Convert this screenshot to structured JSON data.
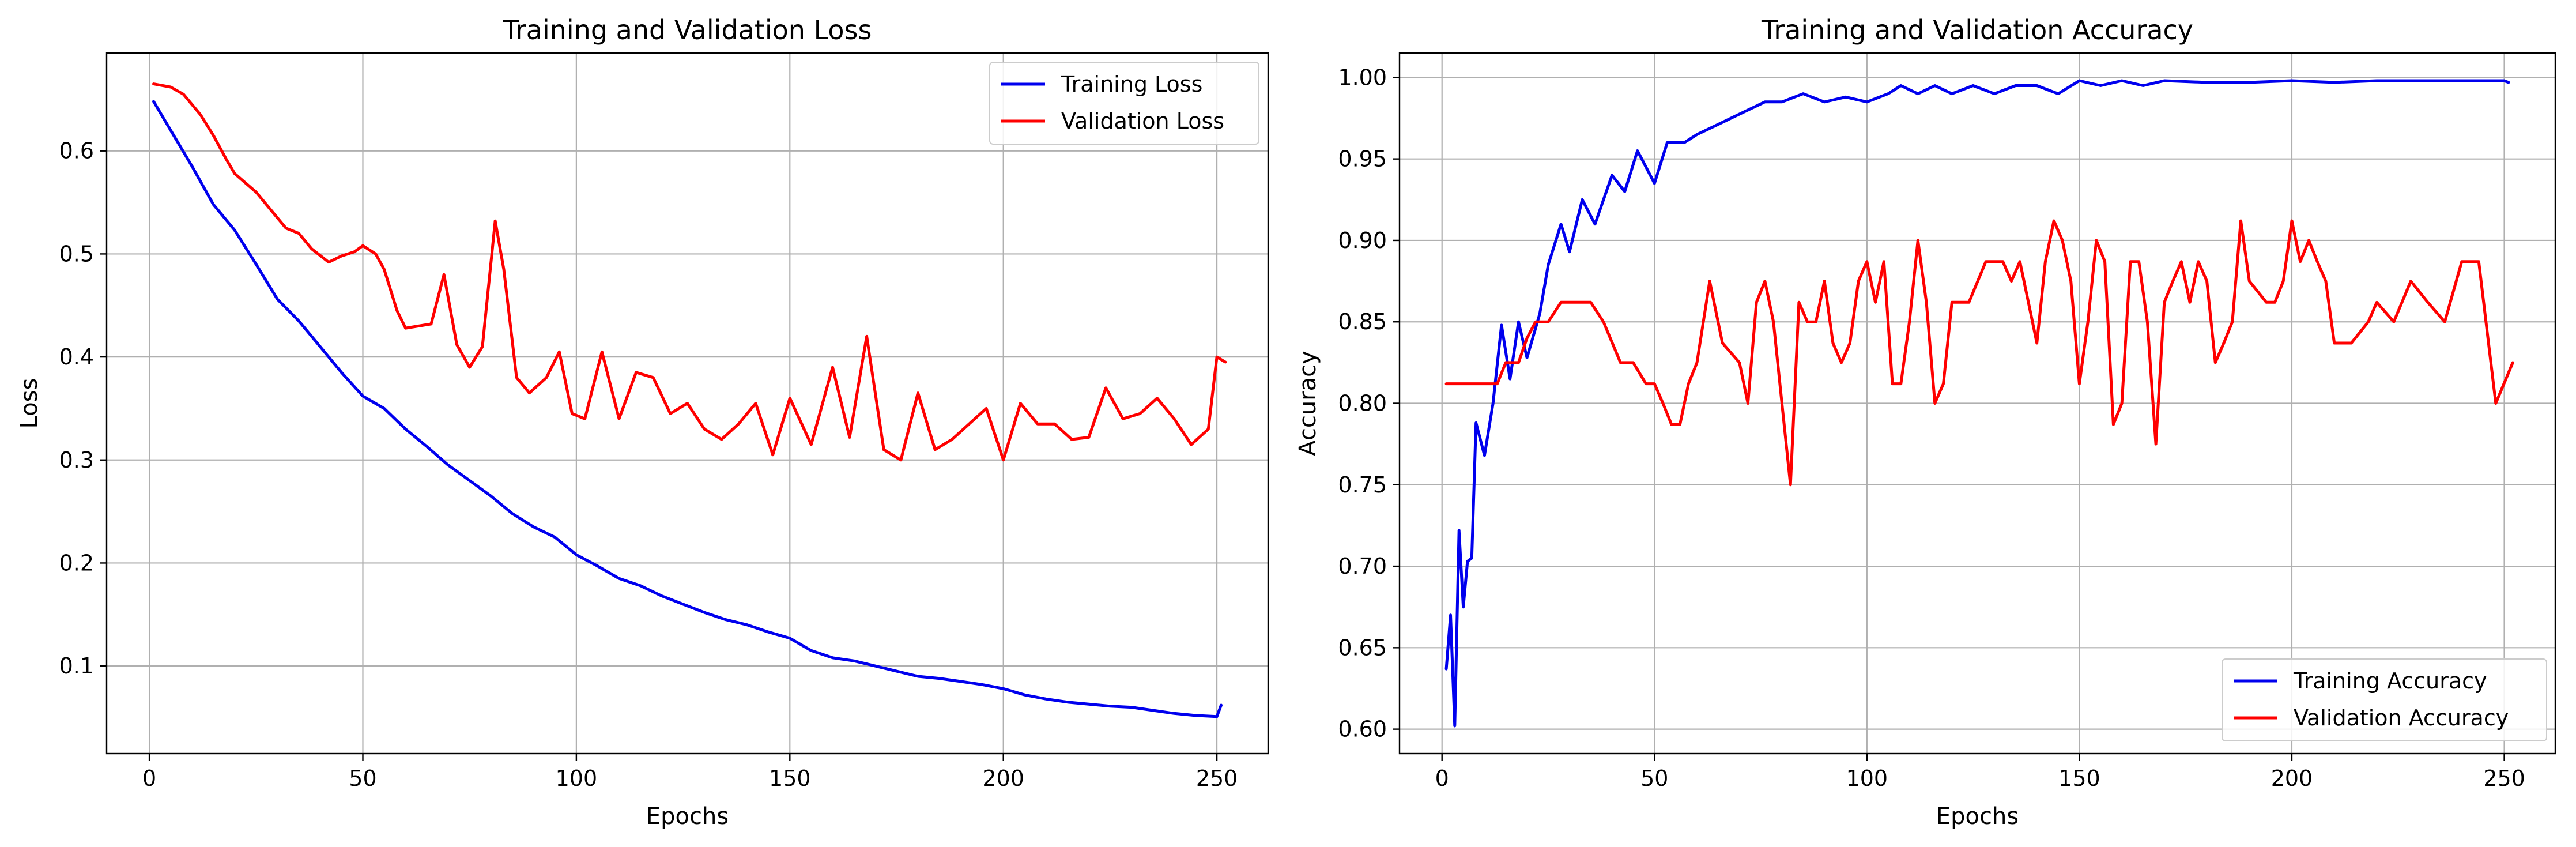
{
  "colors": {
    "train": "#0000ee",
    "val": "#ff0000",
    "grid": "#b0b0b0",
    "axes": "#000000"
  },
  "chart_data": [
    {
      "type": "line",
      "title": "Training and Validation Loss",
      "xlabel": "Epochs",
      "ylabel": "Loss",
      "xlim": [
        -10,
        262
      ],
      "ylim": [
        0.015,
        0.695
      ],
      "xticks": [
        0,
        50,
        100,
        150,
        200,
        250
      ],
      "xtick_labels": [
        "0",
        "50",
        "100",
        "150",
        "200",
        "250"
      ],
      "yticks": [
        0.1,
        0.2,
        0.3,
        0.4,
        0.5,
        0.6
      ],
      "ytick_labels": [
        "0.1",
        "0.2",
        "0.3",
        "0.4",
        "0.5",
        "0.6"
      ],
      "grid": true,
      "legend_position": "upper right",
      "series": [
        {
          "name": "Training Loss",
          "color_key": "train",
          "x": [
            1,
            5,
            10,
            15,
            20,
            25,
            30,
            35,
            40,
            45,
            50,
            55,
            60,
            65,
            70,
            75,
            80,
            85,
            90,
            95,
            100,
            105,
            110,
            115,
            120,
            125,
            130,
            135,
            140,
            145,
            150,
            155,
            160,
            165,
            170,
            175,
            180,
            185,
            190,
            195,
            200,
            205,
            210,
            215,
            220,
            225,
            230,
            235,
            240,
            245,
            250,
            251
          ],
          "y": [
            0.648,
            0.62,
            0.585,
            0.548,
            0.523,
            0.49,
            0.456,
            0.435,
            0.41,
            0.385,
            0.362,
            0.35,
            0.33,
            0.313,
            0.295,
            0.28,
            0.265,
            0.248,
            0.235,
            0.225,
            0.208,
            0.197,
            0.185,
            0.178,
            0.168,
            0.16,
            0.152,
            0.145,
            0.14,
            0.133,
            0.127,
            0.115,
            0.108,
            0.105,
            0.1,
            0.095,
            0.09,
            0.088,
            0.085,
            0.082,
            0.078,
            0.072,
            0.068,
            0.065,
            0.063,
            0.061,
            0.06,
            0.057,
            0.054,
            0.052,
            0.051,
            0.062
          ]
        },
        {
          "name": "Validation Loss",
          "color_key": "val",
          "x": [
            1,
            5,
            8,
            12,
            15,
            18,
            20,
            25,
            28,
            32,
            35,
            38,
            42,
            45,
            48,
            50,
            53,
            55,
            58,
            60,
            63,
            66,
            69,
            72,
            75,
            78,
            81,
            83,
            86,
            89,
            93,
            96,
            99,
            102,
            106,
            110,
            114,
            118,
            122,
            126,
            130,
            134,
            138,
            142,
            146,
            150,
            155,
            160,
            164,
            168,
            172,
            176,
            180,
            184,
            188,
            192,
            196,
            200,
            204,
            208,
            212,
            216,
            220,
            224,
            228,
            232,
            236,
            240,
            244,
            248,
            250,
            252
          ],
          "y": [
            0.665,
            0.662,
            0.655,
            0.635,
            0.615,
            0.592,
            0.578,
            0.56,
            0.545,
            0.525,
            0.52,
            0.505,
            0.492,
            0.498,
            0.502,
            0.508,
            0.5,
            0.485,
            0.445,
            0.428,
            0.43,
            0.432,
            0.48,
            0.412,
            0.39,
            0.41,
            0.532,
            0.485,
            0.38,
            0.365,
            0.38,
            0.405,
            0.345,
            0.34,
            0.405,
            0.34,
            0.385,
            0.38,
            0.345,
            0.355,
            0.33,
            0.32,
            0.335,
            0.355,
            0.305,
            0.36,
            0.315,
            0.39,
            0.322,
            0.42,
            0.31,
            0.3,
            0.365,
            0.31,
            0.32,
            0.335,
            0.35,
            0.3,
            0.355,
            0.335,
            0.335,
            0.32,
            0.322,
            0.37,
            0.34,
            0.345,
            0.36,
            0.34,
            0.315,
            0.33,
            0.4,
            0.395
          ]
        }
      ]
    },
    {
      "type": "line",
      "title": "Training and Validation Accuracy",
      "xlabel": "Epochs",
      "ylabel": "Accuracy",
      "xlim": [
        -10,
        262
      ],
      "ylim": [
        0.585,
        1.015
      ],
      "xticks": [
        0,
        50,
        100,
        150,
        200,
        250
      ],
      "xtick_labels": [
        "0",
        "50",
        "100",
        "150",
        "200",
        "250"
      ],
      "yticks": [
        0.6,
        0.65,
        0.7,
        0.75,
        0.8,
        0.85,
        0.9,
        0.95,
        1.0
      ],
      "ytick_labels": [
        "0.60",
        "0.65",
        "0.70",
        "0.75",
        "0.80",
        "0.85",
        "0.90",
        "0.95",
        "1.00"
      ],
      "grid": true,
      "legend_position": "lower right",
      "series": [
        {
          "name": "Training Accuracy",
          "color_key": "train",
          "x": [
            1,
            2,
            3,
            4,
            5,
            6,
            7,
            8,
            10,
            12,
            14,
            16,
            18,
            20,
            23,
            25,
            28,
            30,
            33,
            36,
            40,
            43,
            46,
            50,
            53,
            57,
            60,
            64,
            68,
            72,
            76,
            80,
            85,
            90,
            95,
            100,
            105,
            108,
            112,
            116,
            120,
            125,
            130,
            135,
            140,
            145,
            150,
            155,
            160,
            165,
            170,
            180,
            190,
            200,
            210,
            220,
            230,
            240,
            250,
            251
          ],
          "y": [
            0.637,
            0.67,
            0.602,
            0.722,
            0.675,
            0.703,
            0.705,
            0.788,
            0.768,
            0.8,
            0.848,
            0.815,
            0.85,
            0.828,
            0.855,
            0.885,
            0.91,
            0.893,
            0.925,
            0.91,
            0.94,
            0.93,
            0.955,
            0.935,
            0.96,
            0.96,
            0.965,
            0.97,
            0.975,
            0.98,
            0.985,
            0.985,
            0.99,
            0.985,
            0.988,
            0.985,
            0.99,
            0.995,
            0.99,
            0.995,
            0.99,
            0.995,
            0.99,
            0.995,
            0.995,
            0.99,
            0.998,
            0.995,
            0.998,
            0.995,
            0.998,
            0.997,
            0.997,
            0.998,
            0.997,
            0.998,
            0.998,
            0.998,
            0.998,
            0.997
          ]
        },
        {
          "name": "Validation Accuracy",
          "color_key": "val",
          "x": [
            1,
            5,
            10,
            13,
            15,
            18,
            20,
            22,
            25,
            28,
            30,
            35,
            38,
            42,
            45,
            48,
            50,
            52,
            54,
            56,
            58,
            60,
            63,
            66,
            70,
            72,
            74,
            76,
            78,
            80,
            82,
            84,
            86,
            88,
            90,
            92,
            94,
            96,
            98,
            100,
            102,
            104,
            106,
            108,
            110,
            112,
            114,
            116,
            118,
            120,
            124,
            128,
            130,
            132,
            134,
            136,
            138,
            140,
            142,
            144,
            146,
            148,
            150,
            152,
            154,
            156,
            158,
            160,
            162,
            164,
            166,
            168,
            170,
            172,
            174,
            176,
            178,
            180,
            182,
            184,
            186,
            188,
            190,
            194,
            196,
            198,
            200,
            202,
            204,
            206,
            208,
            210,
            214,
            218,
            220,
            224,
            228,
            232,
            236,
            240,
            244,
            248,
            252
          ],
          "y": [
            0.812,
            0.812,
            0.812,
            0.812,
            0.825,
            0.825,
            0.84,
            0.85,
            0.85,
            0.862,
            0.862,
            0.862,
            0.85,
            0.825,
            0.825,
            0.812,
            0.812,
            0.8,
            0.787,
            0.787,
            0.812,
            0.825,
            0.875,
            0.837,
            0.825,
            0.8,
            0.862,
            0.875,
            0.85,
            0.8,
            0.75,
            0.862,
            0.85,
            0.85,
            0.875,
            0.837,
            0.825,
            0.837,
            0.875,
            0.887,
            0.862,
            0.887,
            0.812,
            0.812,
            0.85,
            0.9,
            0.862,
            0.8,
            0.812,
            0.862,
            0.862,
            0.887,
            0.887,
            0.887,
            0.875,
            0.887,
            0.862,
            0.837,
            0.887,
            0.912,
            0.9,
            0.875,
            0.812,
            0.85,
            0.9,
            0.887,
            0.787,
            0.8,
            0.887,
            0.887,
            0.85,
            0.775,
            0.862,
            0.875,
            0.887,
            0.862,
            0.887,
            0.875,
            0.825,
            0.837,
            0.85,
            0.912,
            0.875,
            0.862,
            0.862,
            0.875,
            0.912,
            0.887,
            0.9,
            0.887,
            0.875,
            0.837,
            0.837,
            0.85,
            0.862,
            0.85,
            0.875,
            0.862,
            0.85,
            0.887,
            0.887,
            0.8,
            0.825
          ]
        }
      ]
    }
  ]
}
